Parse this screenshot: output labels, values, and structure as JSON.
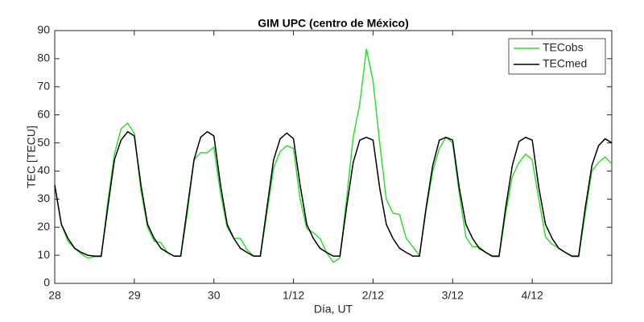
{
  "chart_data": {
    "type": "line",
    "title": "GIM UPC (centro de México)",
    "xlabel": "Día, UT",
    "ylabel": "TEC [TECU]",
    "x": [
      0,
      2,
      4,
      6,
      8,
      10,
      12,
      14,
      16,
      18,
      20,
      22,
      24,
      26,
      28,
      30,
      32,
      34,
      36,
      38,
      40,
      42,
      44,
      46,
      48,
      50,
      52,
      54,
      56,
      58,
      60,
      62,
      64,
      66,
      68,
      70,
      72,
      74,
      76,
      78,
      80,
      82,
      84,
      86,
      88,
      90,
      92,
      94,
      96,
      98,
      100,
      102,
      104,
      106,
      108,
      110,
      112,
      114,
      116,
      118,
      120,
      122,
      124,
      126,
      128,
      130,
      132,
      134,
      136,
      138,
      140,
      142,
      144,
      146,
      148,
      150,
      152,
      154,
      156,
      158,
      160,
      162,
      164,
      166,
      168
    ],
    "series": [
      {
        "name": "TECobs",
        "color": "#2ee02e",
        "values": [
          35,
          21,
          15,
          12.5,
          10.5,
          9,
          9.5,
          9.5,
          29,
          46,
          55,
          57,
          53.5,
          33,
          20,
          15,
          14.5,
          11,
          9.7,
          9.7,
          25,
          44,
          46.5,
          46.5,
          48.5,
          32,
          20,
          16,
          16,
          12,
          9.7,
          9.7,
          25,
          41,
          47,
          49,
          48,
          30,
          19.5,
          18,
          16,
          11,
          7.5,
          9,
          30,
          52,
          64,
          83.5,
          72,
          50,
          30,
          25,
          24.5,
          16,
          13,
          10,
          26,
          40,
          48,
          52,
          50,
          32,
          16.5,
          13,
          13,
          11,
          9.5,
          9.5,
          25,
          38,
          43,
          46,
          44,
          30,
          16.5,
          14,
          12.5,
          11,
          9.5,
          9.5,
          25,
          40,
          43,
          45,
          42.5
        ]
      },
      {
        "name": "TECmed",
        "color": "#000000",
        "values": [
          35,
          21,
          16,
          12.5,
          11,
          10,
          9.7,
          9.7,
          27,
          44,
          51,
          54,
          52.5,
          35,
          21,
          16,
          12.5,
          11,
          9.7,
          9.7,
          27,
          44,
          52,
          54,
          52.5,
          35,
          21,
          16,
          12.5,
          11,
          9.7,
          9.7,
          27,
          44,
          51.5,
          53.5,
          51.5,
          35,
          21,
          16,
          12.5,
          11,
          9.7,
          9.7,
          27,
          43,
          51,
          52,
          51,
          34,
          21,
          16,
          12.5,
          11,
          9.7,
          9.7,
          27,
          42,
          51,
          52,
          51,
          34,
          21,
          16,
          12.5,
          11,
          9.7,
          9.7,
          27,
          42,
          50.5,
          52,
          51,
          34,
          21,
          16,
          12.5,
          11,
          9.7,
          9.7,
          27,
          42,
          49,
          51.5,
          50
        ]
      }
    ],
    "xlim": [
      0,
      168
    ],
    "xticks": [
      {
        "value": 0,
        "label": "28"
      },
      {
        "value": 24,
        "label": "29"
      },
      {
        "value": 48,
        "label": "30"
      },
      {
        "value": 72,
        "label": "1/12"
      },
      {
        "value": 96,
        "label": "2/12"
      },
      {
        "value": 120,
        "label": "3/12"
      },
      {
        "value": 144,
        "label": "4/12"
      }
    ],
    "ylim": [
      0,
      90
    ],
    "yticks": [
      0,
      10,
      20,
      30,
      40,
      50,
      60,
      70,
      80,
      90
    ],
    "legend": "upper right",
    "grid": false
  }
}
